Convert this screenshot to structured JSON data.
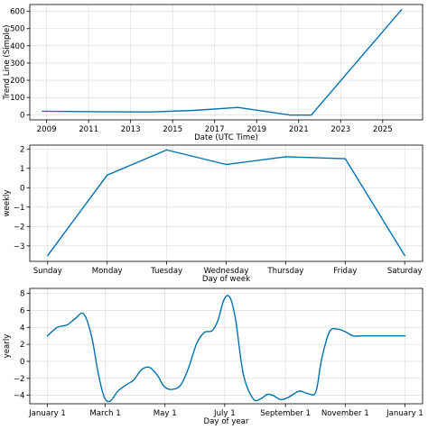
{
  "colors": {
    "series": "#0072B2",
    "grid": "#d9d9d9",
    "axis": "#000000"
  },
  "chart_data": [
    {
      "type": "line",
      "xlabel": "Date (UTC Time)",
      "ylabel": "Trend Line (Simple)",
      "grid": true,
      "xlim": [
        2008.2,
        2026.9
      ],
      "ylim": [
        -30,
        640
      ],
      "xticks": [
        2009,
        2011,
        2013,
        2015,
        2017,
        2019,
        2021,
        2023,
        2025
      ],
      "xtick_labels": [
        "2009",
        "2011",
        "2013",
        "2015",
        "2017",
        "2019",
        "2021",
        "2023",
        "2025"
      ],
      "yticks": [
        0,
        100,
        200,
        300,
        400,
        500,
        600
      ],
      "ytick_labels": [
        "0",
        "100",
        "200",
        "300",
        "400",
        "500",
        "600"
      ],
      "series": [
        {
          "x": [
            2008.8,
            2012.0,
            2014.0,
            2016.0,
            2018.1,
            2020.6,
            2021.6,
            2025.9
          ],
          "values": [
            20,
            17,
            16,
            25,
            42,
            -2,
            -2,
            610
          ]
        }
      ]
    },
    {
      "type": "line",
      "xlabel": "Day of week",
      "ylabel": "weekly",
      "grid": true,
      "xlim": [
        -0.3,
        6.3
      ],
      "ylim": [
        -3.8,
        2.2
      ],
      "categories": [
        "Sunday",
        "Monday",
        "Tuesday",
        "Wednesday",
        "Thursday",
        "Friday",
        "Saturday"
      ],
      "yticks": [
        -3,
        -2,
        -1,
        0,
        1,
        2
      ],
      "ytick_labels": [
        "−3",
        "−2",
        "−1",
        "0",
        "1",
        "2"
      ],
      "series": [
        {
          "values": [
            -3.5,
            0.65,
            1.95,
            1.2,
            1.6,
            1.5,
            -3.5
          ]
        }
      ]
    },
    {
      "type": "line",
      "xlabel": "Day of year",
      "ylabel": "yearly",
      "grid": true,
      "xlim": [
        -18,
        383
      ],
      "ylim": [
        -5.0,
        8.6
      ],
      "xticks": [
        0,
        59,
        120,
        181,
        243,
        304,
        365
      ],
      "xtick_labels": [
        "January 1",
        "March 1",
        "May 1",
        "July 1",
        "September 1",
        "November 1",
        "January 1"
      ],
      "yticks": [
        -4,
        -2,
        0,
        2,
        4,
        6,
        8
      ],
      "ytick_labels": [
        "−4",
        "−2",
        "0",
        "2",
        "4",
        "6",
        "8"
      ],
      "series": [
        {
          "x": [
            0,
            10,
            20,
            28,
            37,
            45,
            52,
            58,
            64,
            72,
            80,
            88,
            96,
            104,
            112,
            118,
            122,
            128,
            136,
            144,
            152,
            160,
            168,
            174,
            180,
            186,
            192,
            200,
            210,
            218,
            224,
            230,
            238,
            245,
            252,
            258,
            266,
            274,
            280,
            288,
            296,
            304,
            312,
            320,
            328,
            336,
            344,
            352,
            360,
            365
          ],
          "values": [
            3.0,
            4.0,
            4.3,
            5.0,
            5.6,
            3.0,
            -1.5,
            -4.2,
            -4.7,
            -3.5,
            -2.8,
            -2.2,
            -1.0,
            -0.7,
            -1.6,
            -2.8,
            -3.2,
            -3.3,
            -2.8,
            -0.8,
            2.0,
            3.4,
            3.6,
            4.8,
            7.2,
            7.6,
            5.0,
            -1.5,
            -4.4,
            -4.4,
            -3.9,
            -4.0,
            -4.5,
            -4.3,
            -3.8,
            -3.5,
            -3.8,
            -3.6,
            0.3,
            3.5,
            3.8,
            3.5,
            3.0,
            3.0,
            3.0,
            3.0,
            3.0,
            3.0,
            3.0,
            3.0
          ]
        }
      ]
    }
  ]
}
